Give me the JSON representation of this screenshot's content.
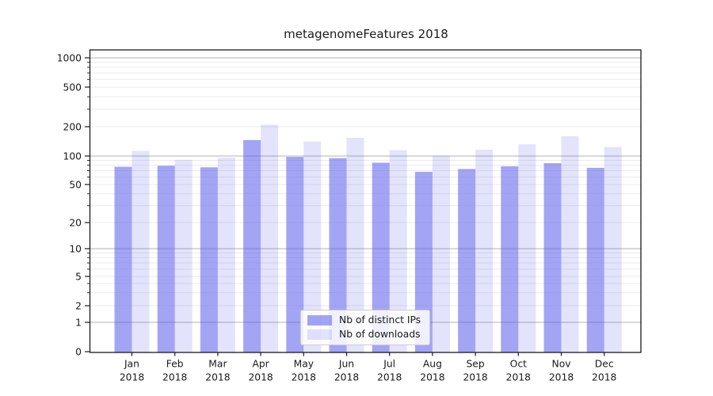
{
  "chart_data": {
    "type": "bar",
    "title": "metagenomeFeatures 2018",
    "categories": [
      "Jan 2018",
      "Feb 2018",
      "Mar 2018",
      "Apr 2018",
      "May 2018",
      "Jun 2018",
      "Jul 2018",
      "Aug 2018",
      "Sep 2018",
      "Oct 2018",
      "Nov 2018",
      "Dec 2018"
    ],
    "series": [
      {
        "name": "Nb of distinct IPs",
        "color": "rgba(90,90,236,0.55)",
        "values": [
          77,
          79,
          76,
          146,
          98,
          95,
          85,
          68,
          73,
          78,
          84,
          75
        ]
      },
      {
        "name": "Nb of downloads",
        "color": "rgba(90,90,236,0.17)",
        "values": [
          113,
          91,
          96,
          210,
          141,
          154,
          115,
          101,
          116,
          132,
          160,
          124
        ]
      }
    ],
    "xlabel": "",
    "ylabel": "",
    "yticks": [
      0,
      1,
      2,
      5,
      10,
      20,
      50,
      100,
      200,
      500,
      1000
    ],
    "yscale": "log-with-zero",
    "ylim": [
      0,
      1200
    ],
    "grid": true,
    "legend_position": "lower center"
  },
  "colors": {
    "bar_distinct_ips_solid": "#a6a6f4",
    "bar_downloads_solid": "#dfdffb",
    "grid_minor": "#ebebeb",
    "grid_major": "#b3b3b3",
    "axis": "#1a1a1a",
    "text": "#1a1a1a",
    "legend_border": "#cccccc"
  }
}
